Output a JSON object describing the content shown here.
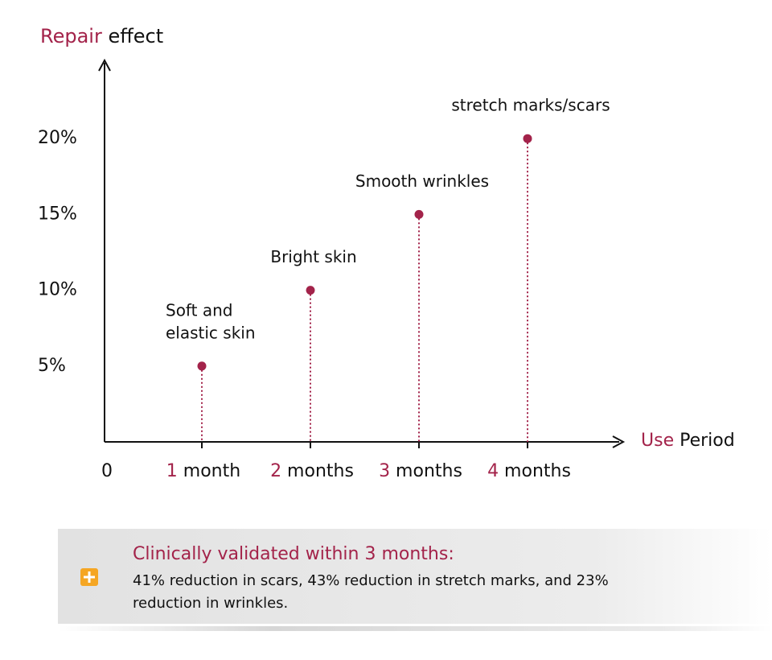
{
  "chart_data": {
    "type": "lollipop",
    "y_label": [
      "Repair",
      "effect"
    ],
    "x_label": [
      "Use",
      "Period"
    ],
    "origin_label": "0",
    "categories": [
      "1 month",
      "2 months",
      "3 months",
      "4 months"
    ],
    "values": [
      5,
      10,
      15,
      20
    ],
    "point_labels": [
      [
        "Soft and",
        "elastic skin"
      ],
      [
        "Bright skin"
      ],
      [
        "Smooth wrinkles"
      ],
      [
        "stretch marks/scars"
      ]
    ],
    "color": "#a3234a",
    "ylim": [
      0,
      25
    ],
    "yticks": [
      {
        "value": 5,
        "label": "5%"
      },
      {
        "value": 10,
        "label": "10%"
      },
      {
        "value": 15,
        "label": "15%"
      },
      {
        "value": 20,
        "label": "20%"
      }
    ]
  },
  "note": {
    "title": "Clinically validated within 3 months:",
    "body": [
      "41% reduction in scars, 43% reduction in stretch marks, and 23%",
      "reduction in wrinkles."
    ]
  }
}
